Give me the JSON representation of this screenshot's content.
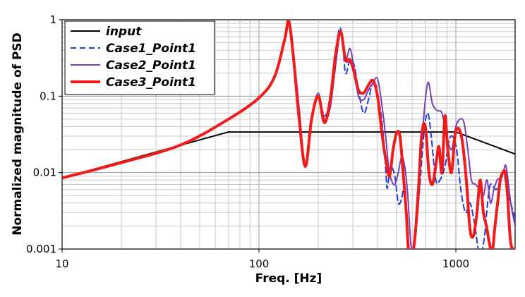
{
  "chart_data": {
    "type": "line",
    "xscale": "log",
    "yscale": "log",
    "xlim": [
      10,
      2000
    ],
    "ylim": [
      0.001,
      1
    ],
    "xlabel": "Freq. [Hz]",
    "ylabel": "Normalized magnitude of PSD",
    "xticks": [
      {
        "value": 10,
        "label": "10"
      },
      {
        "value": 100,
        "label": "100"
      },
      {
        "value": 1000,
        "label": "1000"
      }
    ],
    "yticks": [
      {
        "value": 0.001,
        "label": "0.001"
      },
      {
        "value": 0.01,
        "label": "0.01"
      },
      {
        "value": 0.1,
        "label": "0.1"
      },
      {
        "value": 1,
        "label": "1"
      }
    ],
    "grid": true,
    "legend_position": "top-left",
    "series": [
      {
        "name": "input",
        "color": "#000000",
        "dash": "solid",
        "width": 2,
        "x": [
          10,
          70,
          1000,
          2000
        ],
        "y": [
          0.0085,
          0.034,
          0.034,
          0.0175
        ]
      },
      {
        "name": "Case1_Point1",
        "color": "#1f3fdc",
        "dash": "dashed",
        "width": 2,
        "x": [
          10,
          20,
          40,
          70,
          100,
          120,
          135,
          142,
          150,
          160,
          172,
          185,
          200,
          215,
          230,
          245,
          255,
          265,
          275,
          290,
          305,
          320,
          340,
          360,
          375,
          390,
          405,
          420,
          435,
          445,
          450,
          460,
          470,
          490,
          510,
          530,
          550,
          580,
          610,
          650,
          690,
          720,
          750,
          790,
          830,
          880,
          920,
          960,
          1010,
          1060,
          1120,
          1180,
          1250,
          1300,
          1350,
          1400,
          1450,
          1500,
          1600,
          1700,
          1750,
          1800,
          1900,
          2000
        ],
        "y": [
          0.0085,
          0.0135,
          0.023,
          0.05,
          0.095,
          0.18,
          0.55,
          0.85,
          0.3,
          0.06,
          0.012,
          0.05,
          0.1,
          0.055,
          0.09,
          0.3,
          0.75,
          0.6,
          0.2,
          0.3,
          0.25,
          0.12,
          0.06,
          0.09,
          0.14,
          0.15,
          0.09,
          0.05,
          0.018,
          0.007,
          0.0065,
          0.01,
          0.012,
          0.009,
          0.004,
          0.0045,
          0.006,
          0.001,
          0.0009,
          0.005,
          0.035,
          0.06,
          0.03,
          0.008,
          0.008,
          0.012,
          0.025,
          0.03,
          0.02,
          0.006,
          0.003,
          0.004,
          0.002,
          0.001,
          0.0009,
          0.0015,
          0.004,
          0.007,
          0.006,
          0.008,
          0.01,
          0.007,
          0.004,
          0.0025
        ]
      },
      {
        "name": "Case2_Point1",
        "color": "#7a3fb0",
        "dash": "solid",
        "width": 2,
        "x": [
          10,
          20,
          40,
          70,
          100,
          120,
          135,
          142,
          150,
          160,
          172,
          185,
          200,
          215,
          230,
          245,
          260,
          275,
          290,
          305,
          320,
          340,
          360,
          380,
          400,
          420,
          440,
          455,
          470,
          490,
          510,
          530,
          550,
          570,
          590,
          610,
          640,
          680,
          720,
          760,
          800,
          850,
          900,
          950,
          1000,
          1050,
          1100,
          1150,
          1200,
          1260,
          1320,
          1380,
          1440,
          1500,
          1560,
          1620,
          1680,
          1740,
          1800,
          1900,
          2000
        ],
        "y": [
          0.0085,
          0.0135,
          0.023,
          0.05,
          0.095,
          0.18,
          0.55,
          0.9,
          0.35,
          0.07,
          0.012,
          0.05,
          0.11,
          0.05,
          0.07,
          0.25,
          0.7,
          0.3,
          0.42,
          0.22,
          0.1,
          0.09,
          0.12,
          0.15,
          0.17,
          0.08,
          0.03,
          0.012,
          0.008,
          0.007,
          0.01,
          0.016,
          0.012,
          0.005,
          0.0012,
          0.001,
          0.006,
          0.04,
          0.15,
          0.08,
          0.065,
          0.06,
          0.03,
          0.02,
          0.04,
          0.05,
          0.045,
          0.02,
          0.008,
          0.007,
          0.006,
          0.005,
          0.008,
          0.004,
          0.006,
          0.008,
          0.0085,
          0.01,
          0.012,
          0.004,
          0.002
        ]
      },
      {
        "name": "Case3_Point1",
        "color": "#ee1c1c",
        "dash": "solid",
        "width": 4,
        "x": [
          10,
          20,
          40,
          70,
          100,
          120,
          135,
          142,
          150,
          160,
          172,
          185,
          200,
          215,
          230,
          245,
          260,
          275,
          290,
          305,
          320,
          340,
          360,
          380,
          400,
          420,
          440,
          460,
          480,
          500,
          520,
          540,
          560,
          575,
          590,
          610,
          640,
          670,
          700,
          730,
          760,
          790,
          820,
          850,
          880,
          910,
          950,
          990,
          1030,
          1080,
          1130,
          1180,
          1230,
          1280,
          1330,
          1380,
          1430,
          1480,
          1530,
          1580,
          1630,
          1680,
          1730,
          1780,
          1830,
          1900,
          2000
        ],
        "y": [
          0.0085,
          0.0135,
          0.023,
          0.05,
          0.095,
          0.18,
          0.55,
          0.95,
          0.3,
          0.05,
          0.012,
          0.05,
          0.1,
          0.045,
          0.09,
          0.35,
          0.7,
          0.3,
          0.3,
          0.2,
          0.12,
          0.11,
          0.14,
          0.16,
          0.1,
          0.035,
          0.015,
          0.009,
          0.02,
          0.033,
          0.03,
          0.01,
          0.003,
          0.0009,
          0.0009,
          0.001,
          0.004,
          0.03,
          0.04,
          0.01,
          0.007,
          0.012,
          0.022,
          0.01,
          0.055,
          0.02,
          0.01,
          0.03,
          0.038,
          0.025,
          0.008,
          0.0018,
          0.0015,
          0.003,
          0.008,
          0.003,
          0.002,
          0.0012,
          0.0009,
          0.002,
          0.004,
          0.008,
          0.01,
          0.01,
          0.005,
          0.0012,
          0.001
        ]
      }
    ]
  }
}
